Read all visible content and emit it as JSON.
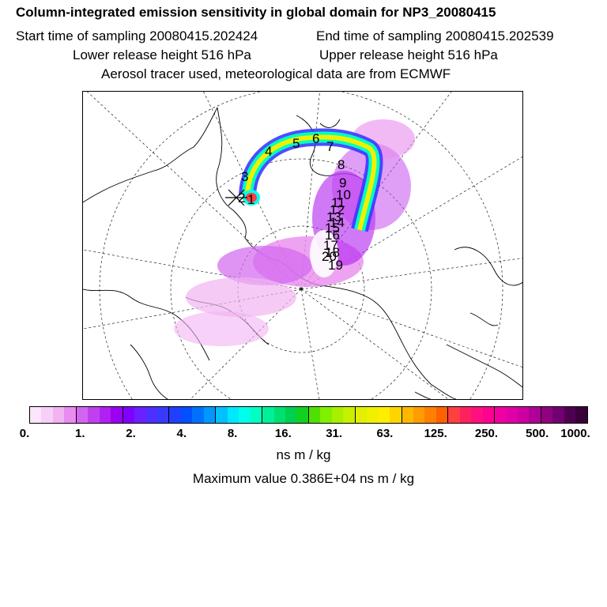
{
  "header": {
    "title": "Column-integrated emission sensitivity in global domain for NP3_20080415",
    "start_time": "Start time of sampling 20080415.202424",
    "end_time": "End time of sampling 20080415.202539",
    "lower_height": "Lower release height  516 hPa",
    "upper_height": "Upper release height  516 hPa",
    "tracer_note": "Aerosol tracer used, meteorological data are from ECMWF"
  },
  "map": {
    "projection": "polar-stereographic",
    "trajectory_labels": [
      "1",
      "2",
      "3",
      "4",
      "5",
      "6",
      "7",
      "8",
      "9",
      "10",
      "11",
      "12",
      "13",
      "14",
      "15",
      "16",
      "17",
      "18",
      "19",
      "20"
    ],
    "release_marker": "x-marker"
  },
  "colorbar": {
    "tick_labels": [
      "0.",
      "1.",
      "2.",
      "4.",
      "8.",
      "16.",
      "31.",
      "63.",
      "125.",
      "250.",
      "500.",
      "1000."
    ],
    "colors": [
      "#fbe6fb",
      "#f7d0f7",
      "#f1b3f1",
      "#ea8cef",
      "#d266f0",
      "#c040f0",
      "#b020f2",
      "#9a00f2",
      "#8000ff",
      "#6a20ff",
      "#4b30ff",
      "#3a3aff",
      "#2040ff",
      "#0050ff",
      "#0070ff",
      "#0098ff",
      "#00c0ff",
      "#00e8ff",
      "#00ffea",
      "#00ffc0",
      "#00f09a",
      "#00e070",
      "#00d050",
      "#10d020",
      "#50e000",
      "#80f000",
      "#a8f000",
      "#c8f000",
      "#e0f000",
      "#f0f000",
      "#ffee00",
      "#ffd400",
      "#ffb800",
      "#ff9c00",
      "#ff8000",
      "#ff6000",
      "#ff4040",
      "#ff2060",
      "#ff1080",
      "#ff0090",
      "#f000a0",
      "#e000a8",
      "#cc00a0",
      "#b00098",
      "#900080",
      "#700070",
      "#500050",
      "#3a003a"
    ],
    "units": "ns m / kg"
  },
  "footer": {
    "max_value": "Maximum value  0.386E+04 ns m / kg"
  }
}
